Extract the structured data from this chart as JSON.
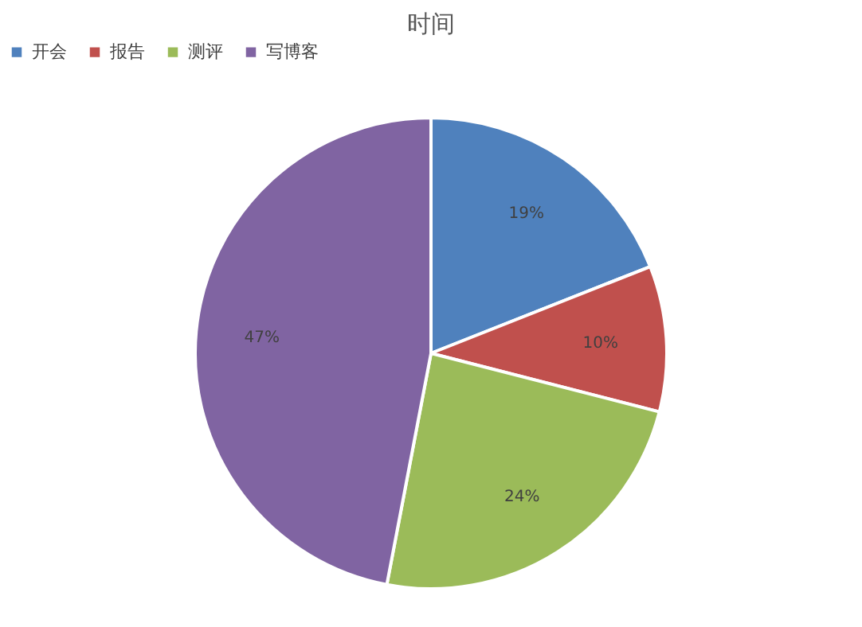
{
  "chart_data": {
    "type": "pie",
    "title": "时间",
    "categories": [
      "开会",
      "报告",
      "测评",
      "写博客"
    ],
    "values": [
      19,
      10,
      24,
      47
    ],
    "value_labels": [
      "19%",
      "10%",
      "24%",
      "47%"
    ],
    "colors": [
      "#4f81bd",
      "#c0504d",
      "#9bbb59",
      "#8064a2"
    ],
    "legend": "top"
  }
}
